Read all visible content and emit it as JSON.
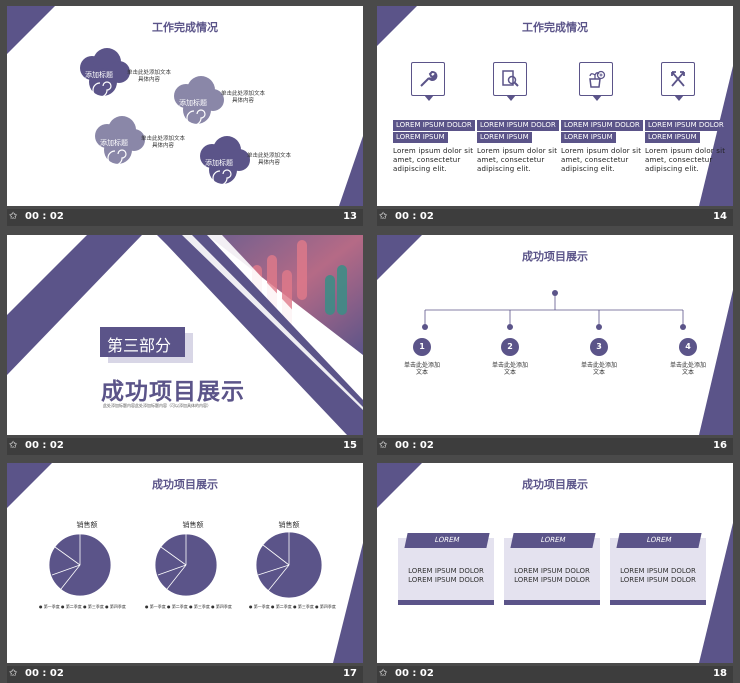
{
  "footer": {
    "time": "00 : 02",
    "star": "✩"
  },
  "slides": [
    {
      "num": "13",
      "title": "工作完成情况",
      "clouds": [
        {
          "label": "添加标题",
          "text1": "单击此处添加文本",
          "text2": "具体内容",
          "color": "#5b5489"
        },
        {
          "label": "添加标题",
          "text1": "单击此处添加文本",
          "text2": "具体内容",
          "color": "#8a87a8"
        },
        {
          "label": "添加标题",
          "text1": "单击此处添加文本",
          "text2": "具体内容",
          "color": "#8a87a8"
        },
        {
          "label": "添加标题",
          "text1": "单击此处添加文本",
          "text2": "具体内容",
          "color": "#5b5489"
        }
      ]
    },
    {
      "num": "14",
      "title": "工作完成情况",
      "icons": [
        "wrench-icon",
        "search-document-icon",
        "plant-add-icon",
        "tools-arrows-icon"
      ],
      "items": [
        {
          "l1": "LOREM IPSUM DOLOR",
          "l2": "LOREM IPSUM",
          "body": [
            "Lorem ipsum dolor sit",
            "amet, consectetur",
            "adipiscing elit."
          ]
        },
        {
          "l1": "LOREM IPSUM DOLOR",
          "l2": "LOREM IPSUM",
          "body": [
            "Lorem ipsum dolor sit",
            "amet, consectetur",
            "adipiscing elit."
          ]
        },
        {
          "l1": "LOREM IPSUM DOLOR",
          "l2": "LOREM IPSUM",
          "body": [
            "Lorem ipsum dolor sit",
            "amet, consectetur",
            "adipiscing elit."
          ]
        },
        {
          "l1": "LOREM IPSUM DOLOR",
          "l2": "LOREM IPSUM",
          "body": [
            "Lorem ipsum dolor sit",
            "amet, consectetur",
            "adipiscing elit."
          ]
        }
      ]
    },
    {
      "num": "15",
      "part": "第三部分",
      "heading": "成功项目展示",
      "sub": "此处添加标题内容此处添加标题内容（可以添加具体的内容）"
    },
    {
      "num": "16",
      "title": "成功项目展示",
      "steps": [
        {
          "n": "1",
          "t1": "单击此处添加",
          "t2": "文本"
        },
        {
          "n": "2",
          "t1": "单击此处添加",
          "t2": "文本"
        },
        {
          "n": "3",
          "t1": "单击此处添加",
          "t2": "文本"
        },
        {
          "n": "4",
          "t1": "单击此处添加",
          "t2": "文本"
        }
      ]
    },
    {
      "num": "17",
      "title": "成功项目展示",
      "pies": [
        {
          "title": "销售额",
          "legend": [
            "第一季度",
            "第二季度",
            "第三季度",
            "第四季度"
          ]
        },
        {
          "title": "销售额",
          "legend": [
            "第一季度",
            "第二季度",
            "第三季度",
            "第四季度"
          ]
        },
        {
          "title": "销售额",
          "legend": [
            "第一季度",
            "第二季度",
            "第三季度",
            "第四季度"
          ]
        }
      ]
    },
    {
      "num": "18",
      "title": "成功项目展示",
      "cards": [
        {
          "head": "LOREM",
          "b1": "LOREM IPSUM DOLOR",
          "b2": "LOREM IPSUM DOLOR"
        },
        {
          "head": "LOREM",
          "b1": "LOREM IPSUM DOLOR",
          "b2": "LOREM IPSUM DOLOR"
        },
        {
          "head": "LOREM",
          "b1": "LOREM IPSUM DOLOR",
          "b2": "LOREM IPSUM DOLOR"
        }
      ]
    }
  ],
  "colors": {
    "accent": "#5b5489",
    "light": "#8a87a8",
    "card": "#e4e2ef"
  }
}
